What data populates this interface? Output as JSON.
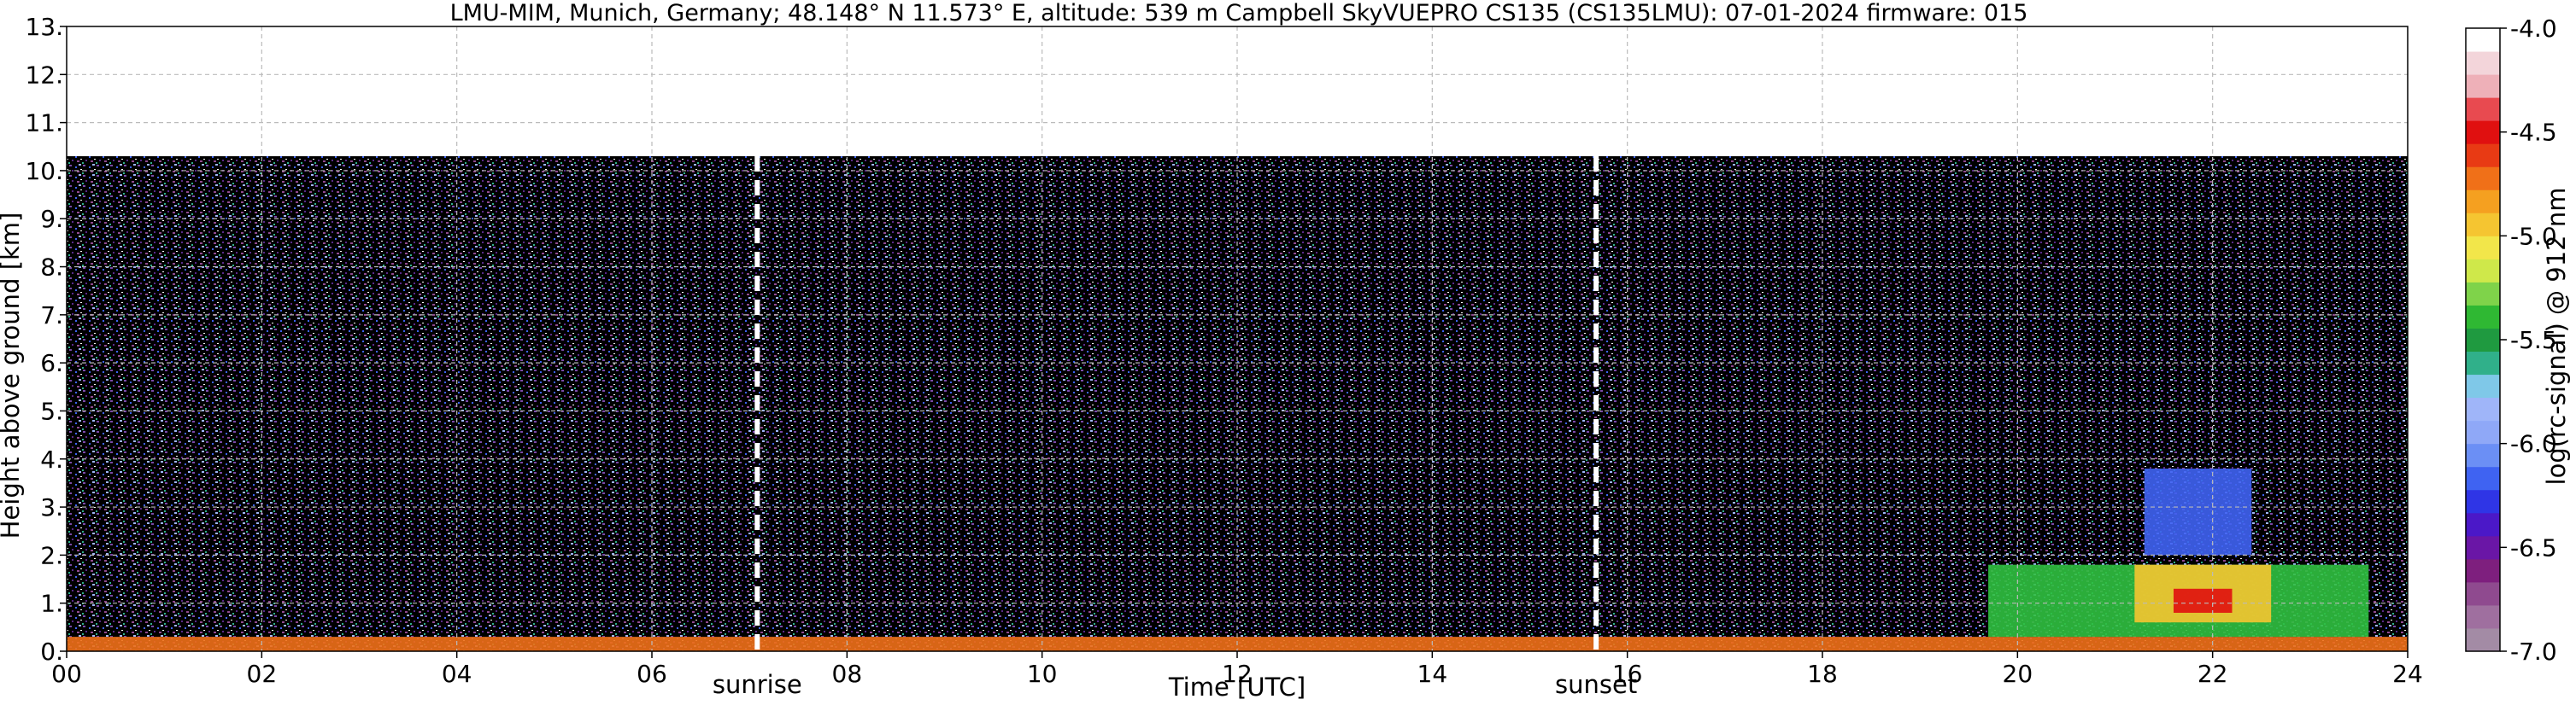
{
  "chart_data": {
    "type": "heatmap",
    "title": "LMU-MIM, Munich, Germany; 48.148° N 11.573° E, altitude: 539 m    Campbell SkyVUEPRO CS135 (CS135LMU): 07-01-2024    firmware: 015",
    "xlabel": "Time [UTC]",
    "ylabel": "Height above ground [km]",
    "colorbar_label": "log(rc-signal) @ 912 nm",
    "xlim": [
      0,
      24
    ],
    "ylim": [
      0,
      13
    ],
    "x_ticks": [
      "00",
      "02",
      "04",
      "06",
      "08",
      "10",
      "12",
      "14",
      "16",
      "18",
      "20",
      "22",
      "24"
    ],
    "y_ticks": [
      "0.",
      "1.",
      "2.",
      "3.",
      "4.",
      "5.",
      "6.",
      "7.",
      "8.",
      "9.",
      "10.",
      "11.",
      "12.",
      "13."
    ],
    "colorbar_range": [
      -7.0,
      -4.0
    ],
    "colorbar_ticks": [
      "-4.0",
      "-4.5",
      "-5.0",
      "-5.5",
      "-6.0",
      "-6.5",
      "-7.0"
    ],
    "colorbar_colors": [
      "#a38ba5",
      "#9f6f9f",
      "#8f4a8f",
      "#7e1f7e",
      "#6a16a6",
      "#4b18c8",
      "#2f35e6",
      "#3f63f2",
      "#6b8ff5",
      "#8fa8f7",
      "#9fb5f9",
      "#7fc8e8",
      "#30b08a",
      "#1f9a40",
      "#2fb833",
      "#7fd34a",
      "#cfe84a",
      "#f2e64a",
      "#f5c531",
      "#f5a020",
      "#f07018",
      "#e83a14",
      "#e01010",
      "#e84a50",
      "#eeb0b8",
      "#f3d5da",
      "#ffffff"
    ],
    "markers": [
      {
        "label": "sunrise",
        "x": 7.08
      },
      {
        "label": "sunset",
        "x": 15.68
      }
    ],
    "grid": true,
    "signal_top_km": 10.3,
    "layers": [
      {
        "name": "background",
        "x": [
          0,
          24
        ],
        "y": [
          0,
          10.3
        ],
        "color": "#000000"
      },
      {
        "name": "near-surface",
        "x": [
          0,
          24
        ],
        "y": [
          0,
          0.3
        ],
        "color": "#f07018"
      },
      {
        "name": "boundary-layer",
        "x": [
          19.7,
          23.6
        ],
        "y": [
          0.3,
          1.8
        ],
        "color": "#30c040"
      },
      {
        "name": "cloud",
        "x": [
          21.2,
          22.6
        ],
        "y": [
          0.6,
          1.8
        ],
        "color": "#f5c531"
      },
      {
        "name": "cloud-core",
        "x": [
          21.6,
          22.2
        ],
        "y": [
          0.8,
          1.3
        ],
        "color": "#e01010"
      },
      {
        "name": "upper-layer",
        "x": [
          21.3,
          22.4
        ],
        "y": [
          2.0,
          3.8
        ],
        "color": "#3f63f2"
      }
    ]
  }
}
